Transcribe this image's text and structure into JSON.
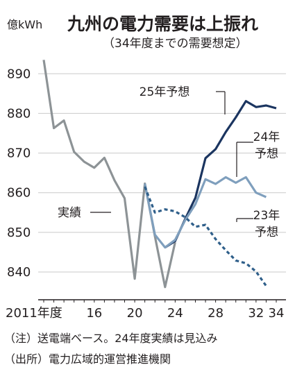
{
  "chart_data": {
    "type": "line",
    "title": "九州の電力需要は上振れ",
    "subtitle": "（34年度までの需要想定）",
    "ylabel": "億kWh",
    "ylim": [
      833,
      896
    ],
    "xlim": [
      2010.5,
      2034.5
    ],
    "yticks": [
      840,
      850,
      860,
      870,
      880,
      890
    ],
    "xticks": [
      {
        "x": 2011,
        "label": "2011年度"
      },
      {
        "x": 2016,
        "label": "16"
      },
      {
        "x": 2020,
        "label": "20"
      },
      {
        "x": 2024,
        "label": "24"
      },
      {
        "x": 2028,
        "label": "28"
      },
      {
        "x": 2032,
        "label": "32"
      },
      {
        "x": 2034,
        "label": "34"
      }
    ],
    "grid": "horizontal",
    "series": [
      {
        "name": "実績",
        "color": "#8d9396",
        "style": "solid",
        "x": [
          2011,
          2012,
          2013,
          2014,
          2015,
          2016,
          2017,
          2018,
          2019,
          2020,
          2021,
          2022,
          2023,
          2024
        ],
        "y": [
          893.5,
          876.3,
          878.2,
          870.3,
          867.8,
          866.3,
          868.8,
          863.1,
          858.6,
          838.3,
          862.3,
          849.0,
          836.2,
          847.5
        ]
      },
      {
        "name": "25年予想",
        "color": "#1b3560",
        "style": "solid",
        "x": [
          2023,
          2024,
          2025,
          2026,
          2027,
          2028,
          2029,
          2030,
          2031,
          2032,
          2033,
          2034
        ],
        "y": [
          846.2,
          847.8,
          853.4,
          858.7,
          868.7,
          871.0,
          875.3,
          879.0,
          883.1,
          881.6,
          882.0,
          881.3
        ]
      },
      {
        "name": "24年予想",
        "color": "#7f9fbd",
        "style": "solid",
        "x": [
          2021,
          2022,
          2023,
          2024,
          2025,
          2026,
          2027,
          2028,
          2029,
          2030,
          2031,
          2032,
          2033
        ],
        "y": [
          862.3,
          849.4,
          846.2,
          848.1,
          853.1,
          857.1,
          863.4,
          862.2,
          863.9,
          862.5,
          863.9,
          860.0,
          858.9
        ]
      },
      {
        "name": "23年予想",
        "color": "#2f5f8a",
        "style": "dashed",
        "x": [
          2021,
          2022,
          2023,
          2024,
          2025,
          2026,
          2027,
          2028,
          2029,
          2030,
          2031,
          2032,
          2033
        ],
        "y": [
          861.5,
          855.0,
          855.8,
          855.3,
          853.8,
          851.4,
          851.9,
          848.3,
          845.5,
          842.9,
          842.2,
          840.1,
          836.5
        ]
      }
    ],
    "annotations": [
      {
        "series": "実績",
        "text": [
          "実績"
        ]
      },
      {
        "series": "25年予想",
        "text": [
          "25年予想"
        ]
      },
      {
        "series": "24年予想",
        "text": [
          "24年",
          "予想"
        ]
      },
      {
        "series": "23年予想",
        "text": [
          "23年",
          "予想"
        ]
      }
    ]
  },
  "footnotes": {
    "note": "（注）送電端ベース。24年度実績は見込み",
    "source": "（出所）電力広域的運営推進機関"
  }
}
